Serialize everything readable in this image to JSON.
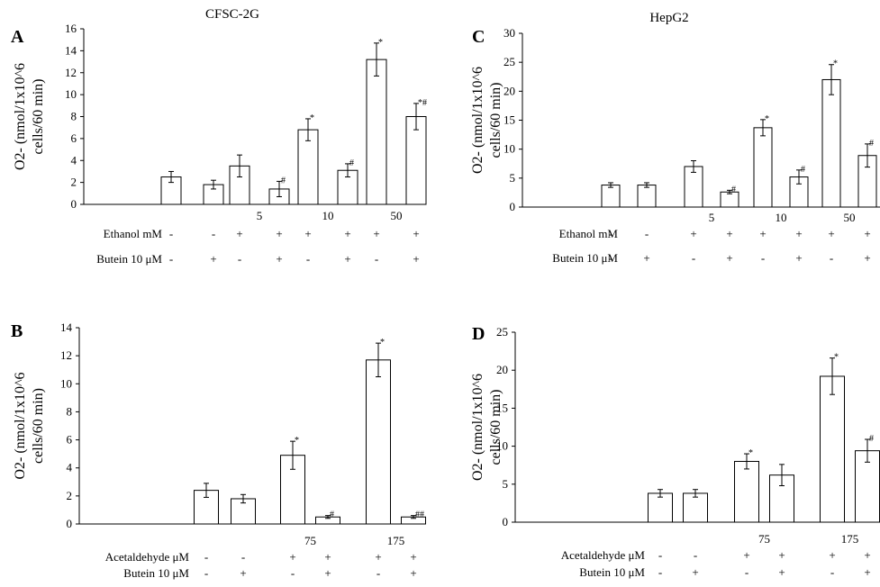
{
  "column_titles": [
    "CFSC-2G",
    "HepG2"
  ],
  "chart_data": [
    {
      "panel": "A",
      "type": "bar",
      "ylabel": [
        "O2- (nmol/1x10^6",
        "cells/60 min)"
      ],
      "ylim": [
        0,
        16
      ],
      "yticks": [
        0,
        2,
        4,
        6,
        8,
        10,
        12,
        14,
        16
      ],
      "series": [
        {
          "values": [
            2.5,
            3.5,
            6.8,
            13.2
          ],
          "errors": [
            0.5,
            1.0,
            1.0,
            1.5
          ],
          "marks": [
            "",
            "",
            "*",
            "*"
          ]
        },
        {
          "values": [
            1.8,
            1.4,
            3.1,
            8.0
          ],
          "errors": [
            0.4,
            0.7,
            0.6,
            1.2
          ],
          "marks": [
            "",
            "#",
            "#",
            "*#"
          ]
        }
      ],
      "group_labels": [
        "",
        "5",
        "10",
        "50"
      ],
      "condition_rows": [
        {
          "label": "Ethanol mM",
          "cells": [
            [
              "-",
              "-"
            ],
            [
              "+",
              "+"
            ],
            [
              "+",
              "+"
            ],
            [
              "+",
              "+"
            ]
          ]
        },
        {
          "label": "Butein 10 μM",
          "cells": [
            [
              "-",
              "+"
            ],
            [
              "-",
              "+"
            ],
            [
              "-",
              "+"
            ],
            [
              "-",
              "+"
            ]
          ]
        }
      ]
    },
    {
      "panel": "C",
      "type": "bar",
      "ylabel": [
        "O2- (nmol/1x10^6",
        "cells/60 min)"
      ],
      "ylim": [
        0,
        30
      ],
      "yticks": [
        0,
        5,
        10,
        15,
        20,
        25,
        30
      ],
      "series": [
        {
          "values": [
            3.8,
            7.0,
            13.7,
            22.0
          ],
          "errors": [
            0.4,
            1.0,
            1.4,
            2.6
          ],
          "marks": [
            "",
            "",
            "*",
            "*"
          ]
        },
        {
          "values": [
            3.8,
            2.6,
            5.2,
            8.9
          ],
          "errors": [
            0.4,
            0.3,
            1.2,
            2.0
          ],
          "marks": [
            "",
            "#",
            "#",
            "#"
          ]
        }
      ],
      "group_labels": [
        "",
        "5",
        "10",
        "50"
      ],
      "condition_rows": [
        {
          "label": "Ethanol mM",
          "cells": [
            [
              "-",
              "-"
            ],
            [
              "+",
              "+"
            ],
            [
              "+",
              "+"
            ],
            [
              "+",
              "+"
            ]
          ]
        },
        {
          "label": "Butein 10 μM",
          "cells": [
            [
              "-",
              "+"
            ],
            [
              "-",
              "+"
            ],
            [
              "-",
              "+"
            ],
            [
              "-",
              "+"
            ]
          ]
        }
      ]
    },
    {
      "panel": "B",
      "type": "bar",
      "ylabel": [
        "O2- (nmol/1x10^6",
        "cells/60 min)"
      ],
      "ylim": [
        0,
        14
      ],
      "yticks": [
        0,
        2,
        4,
        6,
        8,
        10,
        12,
        14
      ],
      "series": [
        {
          "values": [
            2.4,
            4.9,
            11.7
          ],
          "errors": [
            0.5,
            1.0,
            1.2
          ],
          "marks": [
            "",
            "*",
            "*"
          ]
        },
        {
          "values": [
            1.8,
            0.5,
            0.5
          ],
          "errors": [
            0.3,
            0.1,
            0.1
          ],
          "marks": [
            "",
            "#",
            "##"
          ]
        }
      ],
      "group_labels": [
        "",
        "75",
        "175"
      ],
      "condition_rows": [
        {
          "label": "Acetaldehyde μM",
          "cells": [
            [
              "-",
              "-"
            ],
            [
              "+",
              "+"
            ],
            [
              "+",
              "+"
            ]
          ]
        },
        {
          "label": "Butein 10 μM",
          "cells": [
            [
              "-",
              "+"
            ],
            [
              "-",
              "+"
            ],
            [
              "-",
              "+"
            ]
          ]
        }
      ]
    },
    {
      "panel": "D",
      "type": "bar",
      "ylabel": [
        "O2- (nmol/1x10^6",
        "cells/60 min)"
      ],
      "ylim": [
        0,
        25
      ],
      "yticks": [
        0,
        5,
        10,
        15,
        20,
        25
      ],
      "series": [
        {
          "values": [
            3.8,
            8.0,
            19.2
          ],
          "errors": [
            0.5,
            1.0,
            2.4
          ],
          "marks": [
            "",
            "*",
            "*"
          ]
        },
        {
          "values": [
            3.8,
            6.2,
            9.4
          ],
          "errors": [
            0.5,
            1.4,
            1.5
          ],
          "marks": [
            "",
            "",
            "#"
          ]
        }
      ],
      "group_labels": [
        "",
        "75",
        "175"
      ],
      "condition_rows": [
        {
          "label": "Acetaldehyde μM",
          "cells": [
            [
              "-",
              "-"
            ],
            [
              "+",
              "+"
            ],
            [
              "+",
              "+"
            ]
          ]
        },
        {
          "label": "Butein 10 μM",
          "cells": [
            [
              "-",
              "+"
            ],
            [
              "-",
              "+"
            ],
            [
              "-",
              "+"
            ]
          ]
        }
      ]
    }
  ]
}
